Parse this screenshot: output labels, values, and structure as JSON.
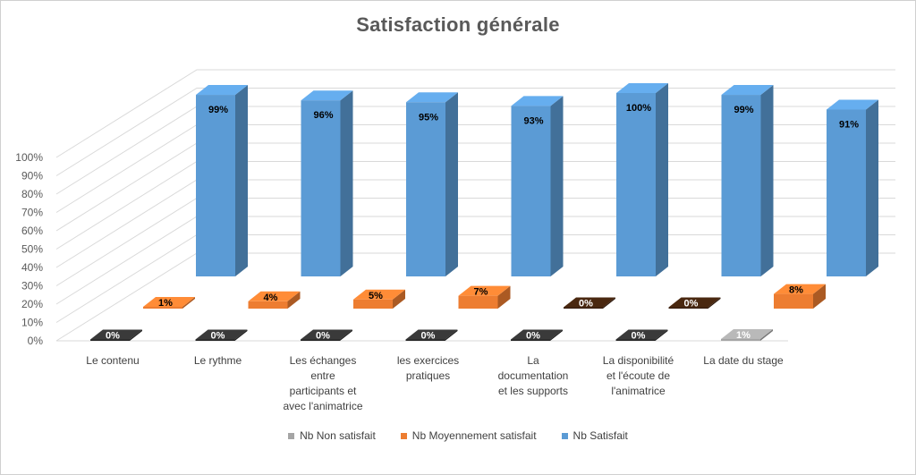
{
  "chart_data": {
    "type": "bar",
    "title": "Satisfaction générale",
    "categories": [
      "Le contenu",
      "Le rythme",
      "Les échanges entre participants et avec l'animatrice",
      "les exercices pratiques",
      "La documentation et les supports",
      "La disponibilité et l'écoute de l'animatrice",
      "La date du stage"
    ],
    "category_lines": [
      [
        "Le contenu"
      ],
      [
        "Le rythme"
      ],
      [
        "Les échanges",
        "entre",
        "participants et",
        "avec l'animatrice"
      ],
      [
        "les exercices",
        "pratiques"
      ],
      [
        "La",
        "documentation",
        "et les supports"
      ],
      [
        "La disponibilité",
        "et l'écoute de",
        "l'animatrice"
      ],
      [
        "La date du stage"
      ]
    ],
    "series": [
      {
        "name": "Nb Non satisfait",
        "values": [
          0,
          0,
          0,
          0,
          0,
          0,
          1
        ],
        "color": "#a5a5a5",
        "labels": [
          "0%",
          "0%",
          "0%",
          "0%",
          "0%",
          "0%",
          "1%"
        ]
      },
      {
        "name": "Nb Moyennement satisfait",
        "values": [
          1,
          4,
          5,
          7,
          0,
          0,
          8
        ],
        "color": "#ed7d31",
        "labels": [
          "1%",
          "4%",
          "5%",
          "7%",
          "0%",
          "0%",
          "8%"
        ]
      },
      {
        "name": "Nb Satisfait",
        "values": [
          99,
          96,
          95,
          93,
          100,
          99,
          91
        ],
        "color": "#5b9bd5",
        "labels": [
          "99%",
          "96%",
          "95%",
          "93%",
          "100%",
          "99%",
          "91%"
        ]
      }
    ],
    "y_ticks": [
      "0%",
      "10%",
      "20%",
      "30%",
      "40%",
      "50%",
      "60%",
      "70%",
      "80%",
      "90%",
      "100%"
    ],
    "ylim": [
      0,
      100
    ],
    "grid": true,
    "legend_position": "bottom"
  }
}
